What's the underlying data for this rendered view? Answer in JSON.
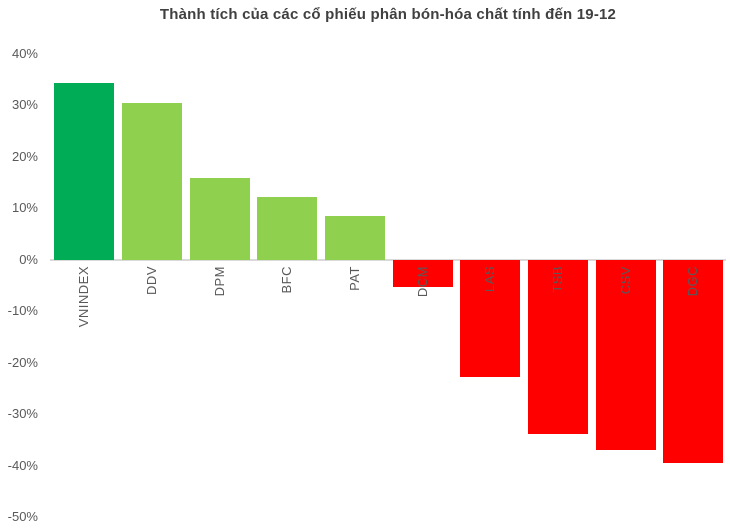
{
  "title": "Thành tích của các cổ phiếu phân bón-hóa chất tính đến 19-12",
  "colors": {
    "index_green": "#00AC56",
    "stock_green": "#8FD14F",
    "negative_red": "#FF0000",
    "axis_line": "#D9D9D9",
    "tick_text": "#595959",
    "title_text": "#404040",
    "bar_label_text": "#595959",
    "background": "#FFFFFF"
  },
  "chart_data": {
    "type": "bar",
    "title": "Thành tích của các cổ phiếu phân bón-hóa chất tính đến 19-12",
    "categories": [
      "VNINDEX",
      "DDV",
      "DPM",
      "BFC",
      "PAT",
      "DCM",
      "LAS",
      "TSB",
      "CSV",
      "DGC"
    ],
    "values": [
      34.4,
      30.4,
      15.9,
      12.2,
      8.6,
      -5.2,
      -22.7,
      -33.9,
      -37.0,
      -39.5
    ],
    "bar_colors": [
      "#00AC56",
      "#8FD14F",
      "#8FD14F",
      "#8FD14F",
      "#8FD14F",
      "#FF0000",
      "#FF0000",
      "#FF0000",
      "#FF0000",
      "#FF0000"
    ],
    "xlabel": "",
    "ylabel": "",
    "ylim": [
      -50,
      40
    ],
    "ytick_labels": [
      "40%",
      "30%",
      "20%",
      "10%",
      "0%",
      "-10%",
      "-20%",
      "-30%",
      "-40%",
      "-50%"
    ],
    "ytick_values": [
      40,
      30,
      20,
      10,
      0,
      -10,
      -20,
      -30,
      -40,
      -50
    ],
    "grid": false,
    "legend": "none",
    "category_label_rotation": -90,
    "category_label_position": "below-zero-axis"
  }
}
